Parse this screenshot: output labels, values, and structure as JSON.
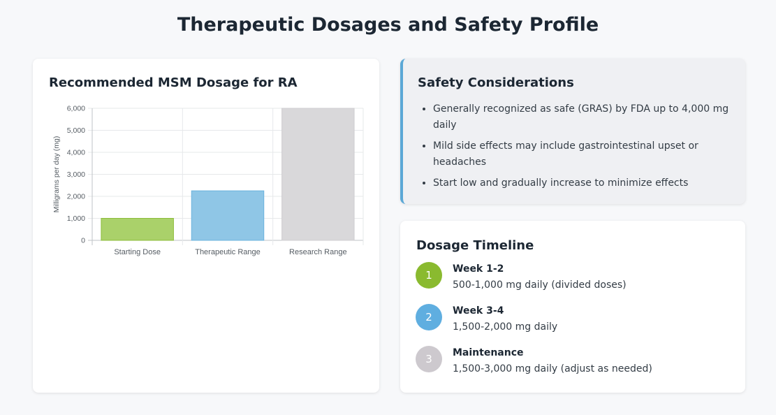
{
  "page": {
    "title": "Therapeutic Dosages and Safety Profile"
  },
  "chart_card": {
    "title": "Recommended MSM Dosage for RA"
  },
  "chart_data": {
    "type": "bar",
    "title": "Recommended MSM Dosage for RA",
    "xlabel": "",
    "ylabel": "Milligrams per day (mg)",
    "categories": [
      "Starting Dose",
      "Therapeutic Range",
      "Research Range"
    ],
    "values": [
      1000,
      2250,
      6000
    ],
    "colors": [
      "#aad16a",
      "#8fc6e6",
      "#d9d8da"
    ],
    "border_colors": [
      "#8cbc3a",
      "#6bb3de",
      "#cfcdd0"
    ],
    "ylim": [
      0,
      6000
    ],
    "yticks": [
      0,
      1000,
      2000,
      3000,
      4000,
      5000,
      6000
    ],
    "ytick_labels": [
      "0",
      "1,000",
      "2,000",
      "3,000",
      "4,000",
      "5,000",
      "6,000"
    ],
    "grid": true,
    "legend": "none"
  },
  "safety": {
    "title": "Safety Considerations",
    "items": [
      "Generally recognized as safe (GRAS) by FDA up to 4,000 mg daily",
      "Mild side effects may include gastrointestinal upset or headaches",
      "Start low and gradually increase to minimize effects"
    ],
    "accent_color": "#5ba8d6"
  },
  "timeline": {
    "title": "Dosage Timeline",
    "steps": [
      {
        "number": "1",
        "title": "Week 1-2",
        "desc": "500-1,000 mg daily (divided doses)",
        "color": "#8aba2f"
      },
      {
        "number": "2",
        "title": "Week 3-4",
        "desc": "1,500-2,000 mg daily",
        "color": "#5faee0"
      },
      {
        "number": "3",
        "title": "Maintenance",
        "desc": "1,500-3,000 mg daily (adjust as needed)",
        "color": "#cdc9ce"
      }
    ]
  }
}
